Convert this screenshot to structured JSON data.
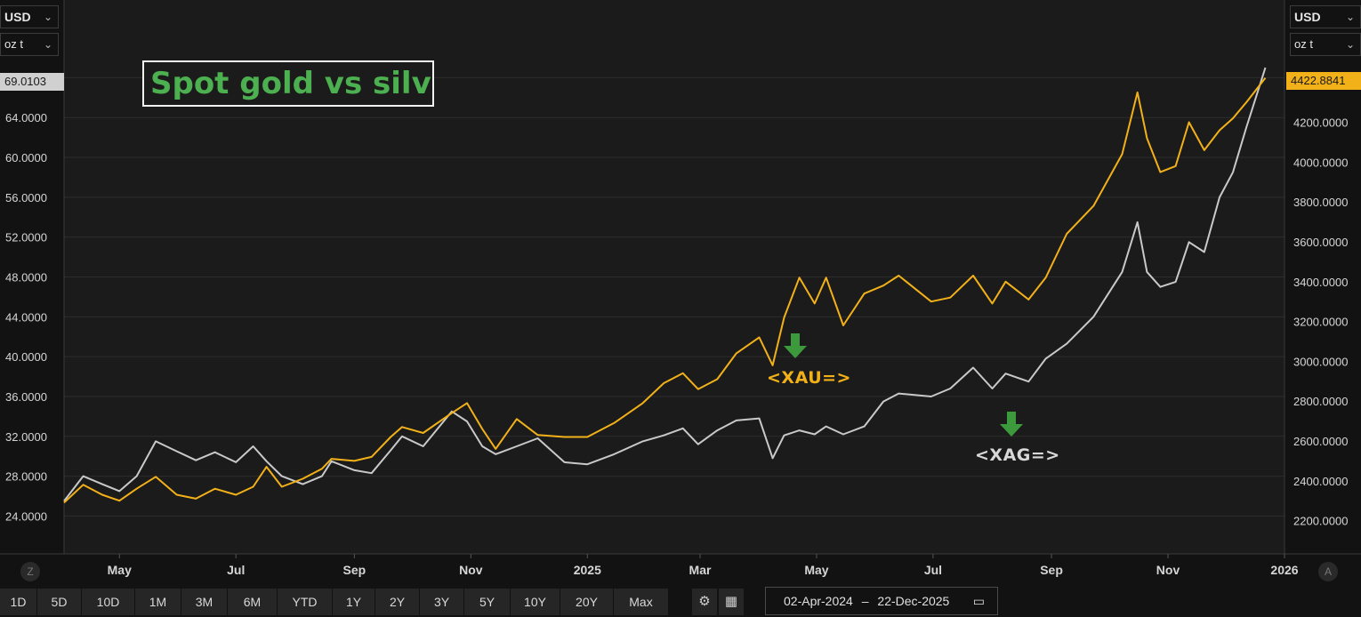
{
  "title": "Spot gold vs silver",
  "left_axis": {
    "currency": "USD",
    "unit": "oz t",
    "last_value": "69.0103"
  },
  "right_axis": {
    "currency": "USD",
    "unit": "oz t",
    "last_value": "4422.8841"
  },
  "time_range_buttons": [
    "1D",
    "5D",
    "10D",
    "1M",
    "3M",
    "6M",
    "YTD",
    "1Y",
    "2Y",
    "3Y",
    "5Y",
    "10Y",
    "20Y",
    "Max"
  ],
  "date_range": {
    "start": "02-Apr-2024",
    "separator": "–",
    "end": "22-Dec-2025"
  },
  "corner_buttons": {
    "left": "Z",
    "right": "A"
  },
  "series_labels": {
    "gold": "<XAU=>",
    "silver": "<XAG=>"
  },
  "colors": {
    "gold": "#f2b118",
    "silver": "#c9c9c9",
    "title": "#4caf50",
    "arrow": "#3c9a3c",
    "gold_flag": "#f2b118",
    "silver_flag": "#d0d0d0"
  },
  "chart_data": {
    "type": "line",
    "x_ticks": [
      "May",
      "Jul",
      "Sep",
      "Nov",
      "2025",
      "Mar",
      "May",
      "Jul",
      "Sep",
      "Nov",
      "2026"
    ],
    "x_tick_dates": [
      "2024-05-01",
      "2024-07-01",
      "2024-09-01",
      "2024-11-01",
      "2025-01-01",
      "2025-03-01",
      "2025-05-01",
      "2025-07-01",
      "2025-09-01",
      "2025-11-01",
      "2026-01-01"
    ],
    "xlim": [
      "2024-04-02",
      "2026-01-01"
    ],
    "y_left_ticks": [
      "24.0000",
      "28.0000",
      "32.0000",
      "36.0000",
      "40.0000",
      "44.0000",
      "48.0000",
      "52.0000",
      "56.0000",
      "60.0000",
      "64.0000",
      "68.0000"
    ],
    "y_left_lim": [
      20.2,
      75.8
    ],
    "y_right_ticks": [
      "2200.0000",
      "2400.0000",
      "2600.0000",
      "2800.0000",
      "3000.0000",
      "3200.0000",
      "3400.0000",
      "3600.0000",
      "3800.0000",
      "4000.0000",
      "4200.0000"
    ],
    "y_right_lim": [
      2033,
      4814
    ],
    "grid": true,
    "series": [
      {
        "name": "<XAU=>",
        "axis": "right",
        "points": [
          [
            "2024-04-02",
            2290
          ],
          [
            "2024-04-12",
            2380
          ],
          [
            "2024-04-22",
            2330
          ],
          [
            "2024-05-01",
            2300
          ],
          [
            "2024-05-10",
            2360
          ],
          [
            "2024-05-20",
            2420
          ],
          [
            "2024-05-31",
            2330
          ],
          [
            "2024-06-10",
            2310
          ],
          [
            "2024-06-20",
            2360
          ],
          [
            "2024-07-01",
            2330
          ],
          [
            "2024-07-10",
            2370
          ],
          [
            "2024-07-17",
            2470
          ],
          [
            "2024-07-25",
            2370
          ],
          [
            "2024-08-05",
            2410
          ],
          [
            "2024-08-15",
            2460
          ],
          [
            "2024-08-20",
            2510
          ],
          [
            "2024-09-01",
            2500
          ],
          [
            "2024-09-10",
            2520
          ],
          [
            "2024-09-20",
            2620
          ],
          [
            "2024-09-26",
            2670
          ],
          [
            "2024-10-07",
            2640
          ],
          [
            "2024-10-22",
            2740
          ],
          [
            "2024-10-30",
            2790
          ],
          [
            "2024-11-07",
            2660
          ],
          [
            "2024-11-14",
            2560
          ],
          [
            "2024-11-25",
            2710
          ],
          [
            "2024-12-06",
            2630
          ],
          [
            "2024-12-20",
            2620
          ],
          [
            "2025-01-01",
            2620
          ],
          [
            "2025-01-15",
            2690
          ],
          [
            "2025-01-30",
            2790
          ],
          [
            "2025-02-10",
            2890
          ],
          [
            "2025-02-20",
            2940
          ],
          [
            "2025-02-28",
            2860
          ],
          [
            "2025-03-10",
            2910
          ],
          [
            "2025-03-20",
            3040
          ],
          [
            "2025-04-01",
            3120
          ],
          [
            "2025-04-08",
            2980
          ],
          [
            "2025-04-14",
            3220
          ],
          [
            "2025-04-22",
            3420
          ],
          [
            "2025-04-30",
            3290
          ],
          [
            "2025-05-06",
            3420
          ],
          [
            "2025-05-15",
            3180
          ],
          [
            "2025-05-26",
            3340
          ],
          [
            "2025-06-05",
            3380
          ],
          [
            "2025-06-13",
            3430
          ],
          [
            "2025-06-30",
            3300
          ],
          [
            "2025-07-10",
            3320
          ],
          [
            "2025-07-22",
            3430
          ],
          [
            "2025-08-01",
            3290
          ],
          [
            "2025-08-08",
            3400
          ],
          [
            "2025-08-20",
            3310
          ],
          [
            "2025-08-29",
            3420
          ],
          [
            "2025-09-09",
            3640
          ],
          [
            "2025-09-23",
            3780
          ],
          [
            "2025-10-08",
            4040
          ],
          [
            "2025-10-16",
            4350
          ],
          [
            "2025-10-21",
            4120
          ],
          [
            "2025-10-28",
            3950
          ],
          [
            "2025-11-05",
            3980
          ],
          [
            "2025-11-12",
            4200
          ],
          [
            "2025-11-20",
            4060
          ],
          [
            "2025-11-28",
            4160
          ],
          [
            "2025-12-05",
            4220
          ],
          [
            "2025-12-12",
            4300
          ],
          [
            "2025-12-22",
            4423
          ]
        ]
      },
      {
        "name": "<XAG=>",
        "axis": "left",
        "points": [
          [
            "2024-04-02",
            25.5
          ],
          [
            "2024-04-12",
            28.0
          ],
          [
            "2024-04-22",
            27.2
          ],
          [
            "2024-05-01",
            26.5
          ],
          [
            "2024-05-10",
            28.0
          ],
          [
            "2024-05-20",
            31.5
          ],
          [
            "2024-05-31",
            30.5
          ],
          [
            "2024-06-10",
            29.6
          ],
          [
            "2024-06-20",
            30.4
          ],
          [
            "2024-07-01",
            29.4
          ],
          [
            "2024-07-10",
            31.0
          ],
          [
            "2024-07-17",
            29.5
          ],
          [
            "2024-07-25",
            28.0
          ],
          [
            "2024-08-05",
            27.2
          ],
          [
            "2024-08-15",
            28.0
          ],
          [
            "2024-08-20",
            29.5
          ],
          [
            "2024-09-01",
            28.6
          ],
          [
            "2024-09-10",
            28.3
          ],
          [
            "2024-09-20",
            30.6
          ],
          [
            "2024-09-26",
            32.0
          ],
          [
            "2024-10-07",
            31.0
          ],
          [
            "2024-10-22",
            34.5
          ],
          [
            "2024-10-30",
            33.5
          ],
          [
            "2024-11-07",
            31.0
          ],
          [
            "2024-11-14",
            30.2
          ],
          [
            "2024-11-25",
            31.0
          ],
          [
            "2024-12-06",
            31.8
          ],
          [
            "2024-12-20",
            29.4
          ],
          [
            "2025-01-01",
            29.2
          ],
          [
            "2025-01-15",
            30.2
          ],
          [
            "2025-01-30",
            31.5
          ],
          [
            "2025-02-10",
            32.1
          ],
          [
            "2025-02-20",
            32.8
          ],
          [
            "2025-02-28",
            31.2
          ],
          [
            "2025-03-10",
            32.6
          ],
          [
            "2025-03-20",
            33.6
          ],
          [
            "2025-04-01",
            33.8
          ],
          [
            "2025-04-08",
            29.8
          ],
          [
            "2025-04-14",
            32.1
          ],
          [
            "2025-04-22",
            32.6
          ],
          [
            "2025-04-30",
            32.2
          ],
          [
            "2025-05-06",
            33.0
          ],
          [
            "2025-05-15",
            32.2
          ],
          [
            "2025-05-26",
            33.0
          ],
          [
            "2025-06-05",
            35.5
          ],
          [
            "2025-06-13",
            36.3
          ],
          [
            "2025-06-30",
            36.0
          ],
          [
            "2025-07-10",
            36.8
          ],
          [
            "2025-07-22",
            38.9
          ],
          [
            "2025-08-01",
            36.8
          ],
          [
            "2025-08-08",
            38.3
          ],
          [
            "2025-08-20",
            37.5
          ],
          [
            "2025-08-29",
            39.8
          ],
          [
            "2025-09-09",
            41.3
          ],
          [
            "2025-09-23",
            44.0
          ],
          [
            "2025-10-08",
            48.5
          ],
          [
            "2025-10-16",
            53.5
          ],
          [
            "2025-10-21",
            48.5
          ],
          [
            "2025-10-28",
            47.0
          ],
          [
            "2025-11-05",
            47.5
          ],
          [
            "2025-11-12",
            51.5
          ],
          [
            "2025-11-20",
            50.5
          ],
          [
            "2025-11-28",
            56.0
          ],
          [
            "2025-12-05",
            58.5
          ],
          [
            "2025-12-12",
            63.0
          ],
          [
            "2025-12-22",
            69.0103
          ]
        ]
      }
    ]
  }
}
